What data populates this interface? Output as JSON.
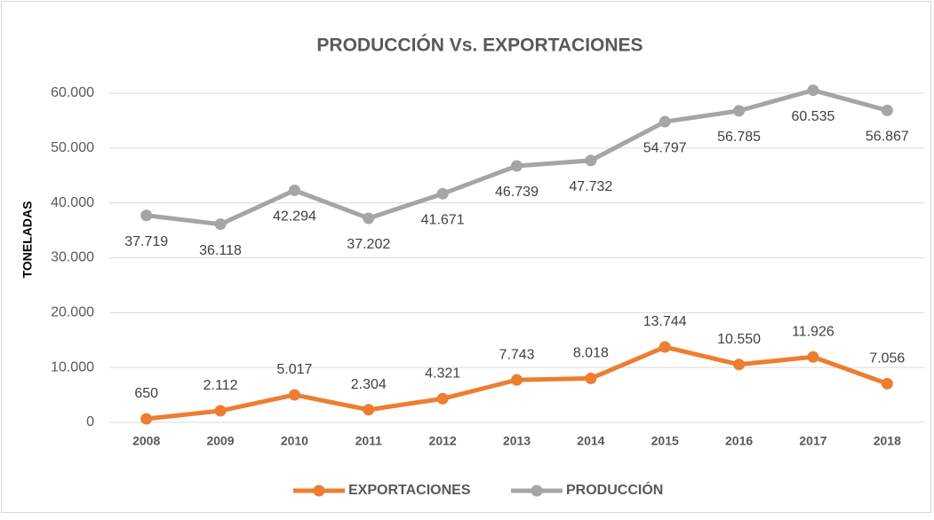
{
  "chart_data": {
    "type": "line",
    "title": "PRODUCCIÓN Vs. EXPORTACIONES",
    "ylabel": "TONELADAS",
    "categories": [
      "2008",
      "2009",
      "2010",
      "2011",
      "2012",
      "2013",
      "2014",
      "2015",
      "2016",
      "2017",
      "2018"
    ],
    "series": [
      {
        "name": "EXPORTACIONES",
        "color": "#ed7d31",
        "values": [
          650,
          2112,
          5017,
          2304,
          4321,
          7743,
          8018,
          13744,
          10550,
          11926,
          7056
        ],
        "value_labels": [
          "650",
          "2.112",
          "5.017",
          "2.304",
          "4.321",
          "7.743",
          "8.018",
          "13.744",
          "10.550",
          "11.926",
          "7.056"
        ]
      },
      {
        "name": "PRODUCCIÓN",
        "color": "#a5a5a5",
        "values": [
          37719,
          36118,
          42294,
          37202,
          41671,
          46739,
          47732,
          54797,
          56785,
          60535,
          56867
        ],
        "value_labels": [
          "37.719",
          "36.118",
          "42.294",
          "37.202",
          "41.671",
          "46.739",
          "47.732",
          "54.797",
          "56.785",
          "60.535",
          "56.867"
        ]
      }
    ],
    "ylim": [
      0,
      60000
    ],
    "yticks": [
      0,
      {
        "value": 10000,
        "label": "10.000"
      },
      {
        "value": 20000,
        "label": "20.000"
      },
      {
        "value": 30000,
        "label": "30.000"
      },
      {
        "value": 40000,
        "label": "40.000"
      },
      {
        "value": 50000,
        "label": "50.000"
      },
      {
        "value": 60000,
        "label": "60.000"
      }
    ],
    "grid": true,
    "legend": "bottom"
  }
}
